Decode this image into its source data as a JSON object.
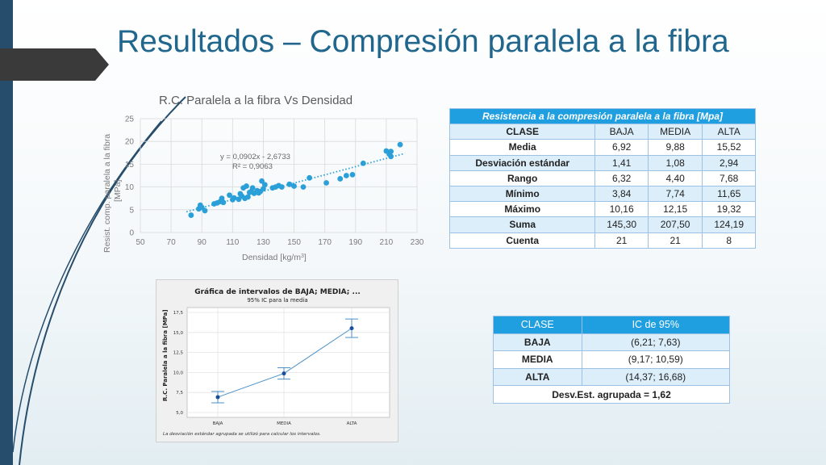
{
  "slide": {
    "title": "Resultados – Compresión paralela a la fibra"
  },
  "colors": {
    "accent": "#21678d",
    "table_header": "#1f9ee0",
    "table_band": "#dbeefa",
    "scatter_points": "#2a9fd8",
    "interval_line": "#4a90c8"
  },
  "scatter_chart": {
    "title": "R.C. Paralela a la fibra Vs Densidad",
    "xlabel": "Densidad [kg/m",
    "xlabel_sup": "3",
    "xlabel_end": "]",
    "ylabel_line1": "Resist. comp. paralela a la fibra",
    "ylabel_line2": "[MPa]",
    "equation": "y = 0,0902x - 2,6733",
    "r2": "R² = 0,9063"
  },
  "stats_table": {
    "header": "Resistencia a la compresión paralela a la fibra  [Mpa]",
    "columns": [
      "CLASE",
      "BAJA",
      "MEDIA",
      "ALTA"
    ],
    "rows": [
      {
        "label": "Media",
        "values": [
          "6,92",
          "9,88",
          "15,52"
        ]
      },
      {
        "label": "Desviación estándar",
        "values": [
          "1,41",
          "1,08",
          "2,94"
        ]
      },
      {
        "label": "Rango",
        "values": [
          "6,32",
          "4,40",
          "7,68"
        ]
      },
      {
        "label": "Mínimo",
        "values": [
          "3,84",
          "7,74",
          "11,65"
        ]
      },
      {
        "label": "Máximo",
        "values": [
          "10,16",
          "12,15",
          "19,32"
        ]
      },
      {
        "label": "Suma",
        "values": [
          "145,30",
          "207,50",
          "124,19"
        ]
      },
      {
        "label": "Cuenta",
        "values": [
          "21",
          "21",
          "8"
        ]
      }
    ]
  },
  "interval_chart": {
    "title": "Gráfica de intervalos de BAJA; MEDIA; ...",
    "subtitle": "95% IC para la media",
    "ylabel": "R.C. Paralela a la fibra [MPa]",
    "footnote": "La desviación estándar agrupada se utilizó para calcular los intervalos."
  },
  "ci_table": {
    "columns": [
      "CLASE",
      "IC de 95%"
    ],
    "rows": [
      {
        "label": "BAJA",
        "value": "(6,21;  7,63)"
      },
      {
        "label": "MEDIA",
        "value": "(9,17; 10,59)"
      },
      {
        "label": "ALTA",
        "value": "(14,37;  16,68)"
      }
    ],
    "footer": "Desv.Est. agrupada = 1,62"
  },
  "chart_data": [
    {
      "type": "scatter",
      "title": "R.C. Paralela a la fibra Vs Densidad",
      "xlabel": "Densidad [kg/m3]",
      "ylabel": "Resist. comp. paralela a la fibra [MPa]",
      "xlim": [
        50,
        230
      ],
      "ylim": [
        0,
        25
      ],
      "xticks": [
        50,
        70,
        90,
        110,
        130,
        150,
        170,
        190,
        210,
        230
      ],
      "yticks": [
        0,
        5,
        10,
        15,
        20,
        25
      ],
      "grid": true,
      "trendline": {
        "slope": 0.0902,
        "intercept": -2.6733,
        "r2": 0.9063
      },
      "points": [
        [
          83,
          3.8
        ],
        [
          88,
          5.2
        ],
        [
          89,
          6.0
        ],
        [
          90,
          5.5
        ],
        [
          92,
          4.8
        ],
        [
          98,
          6.3
        ],
        [
          100,
          6.5
        ],
        [
          102,
          6.8
        ],
        [
          103,
          7.5
        ],
        [
          104,
          6.6
        ],
        [
          108,
          8.2
        ],
        [
          110,
          7.2
        ],
        [
          111,
          7.6
        ],
        [
          114,
          7.3
        ],
        [
          115,
          8.5
        ],
        [
          116,
          8.0
        ],
        [
          117,
          9.8
        ],
        [
          118,
          7.5
        ],
        [
          119,
          10.2
        ],
        [
          120,
          7.8
        ],
        [
          121,
          8.8
        ],
        [
          122,
          9.0
        ],
        [
          123,
          9.8
        ],
        [
          124,
          8.6
        ],
        [
          126,
          9.2
        ],
        [
          127,
          8.7
        ],
        [
          128,
          9.0
        ],
        [
          129,
          11.3
        ],
        [
          130,
          9.6
        ],
        [
          131,
          10.5
        ],
        [
          136,
          9.8
        ],
        [
          138,
          10.0
        ],
        [
          140,
          10.3
        ],
        [
          142,
          10.0
        ],
        [
          147,
          10.6
        ],
        [
          150,
          10.2
        ],
        [
          156,
          10.0
        ],
        [
          160,
          12.0
        ],
        [
          171,
          10.9
        ],
        [
          180,
          11.8
        ],
        [
          184,
          12.5
        ],
        [
          188,
          12.7
        ],
        [
          195,
          15.2
        ],
        [
          210,
          17.9
        ],
        [
          212,
          17.2
        ],
        [
          213,
          16.7
        ],
        [
          213,
          17.8
        ],
        [
          219,
          19.3
        ]
      ]
    },
    {
      "type": "interval",
      "title": "Gráfica de intervalos de BAJA; MEDIA; ...",
      "subtitle": "95% IC para la media",
      "ylabel": "R.C. Paralela a la fibra [MPa]",
      "categories": [
        "BAJA",
        "MEDIA",
        "ALTA"
      ],
      "means": [
        6.92,
        9.88,
        15.52
      ],
      "lower": [
        6.21,
        9.17,
        14.37
      ],
      "upper": [
        7.63,
        10.59,
        16.68
      ],
      "ylim": [
        5.0,
        17.5
      ],
      "yticks": [
        "5,0",
        "7,5",
        "10,0",
        "12,5",
        "15,0",
        "17,5"
      ],
      "grid": true
    }
  ]
}
